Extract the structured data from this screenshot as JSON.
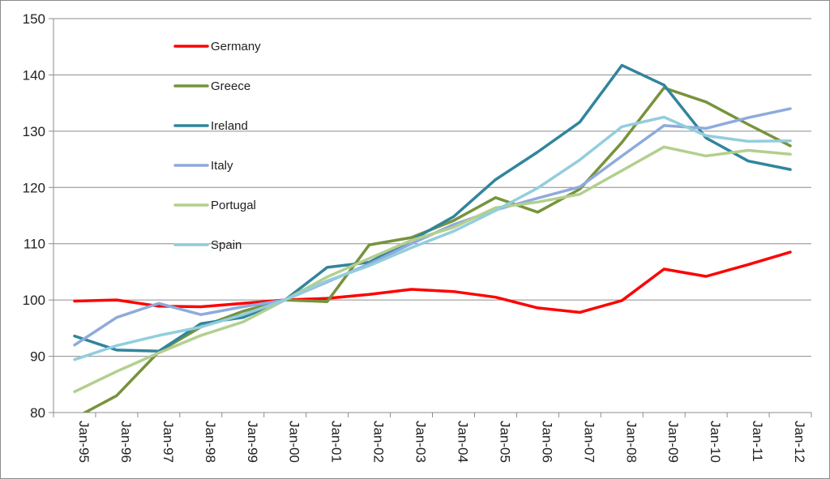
{
  "chart_data": {
    "type": "line",
    "title": "",
    "xlabel": "",
    "ylabel": "",
    "categories": [
      "Jan-95",
      "Jan-96",
      "Jan-97",
      "Jan-98",
      "Jan-99",
      "Jan-00",
      "Jan-01",
      "Jan-02",
      "Jan-03",
      "Jan-04",
      "Jan-05",
      "Jan-06",
      "Jan-07",
      "Jan-08",
      "Jan-09",
      "Jan-10",
      "Jan-11",
      "Jan-12"
    ],
    "ylim": [
      80,
      150
    ],
    "yticks": [
      "80",
      "90",
      "100",
      "110",
      "120",
      "130",
      "140",
      "150"
    ],
    "grid": true,
    "legend_position": "top-left",
    "series": [
      {
        "name": "Germany",
        "color": "#ff0000",
        "values": [
          99.8,
          100.0,
          98.9,
          98.8,
          99.4,
          100.0,
          100.3,
          101.0,
          101.9,
          101.5,
          100.5,
          98.6,
          97.8,
          99.9,
          105.5,
          104.2,
          106.3,
          108.5
        ]
      },
      {
        "name": "Greece",
        "color": "#77933c",
        "values": [
          79.0,
          83.0,
          90.8,
          95.2,
          98.0,
          100.0,
          99.7,
          109.8,
          111.1,
          114.1,
          118.2,
          115.6,
          119.7,
          128.0,
          137.7,
          135.2,
          131.2,
          127.4
        ]
      },
      {
        "name": "Ireland",
        "color": "#31859c",
        "values": [
          93.6,
          91.1,
          90.9,
          95.8,
          96.9,
          100.0,
          105.8,
          106.7,
          110.6,
          114.8,
          121.4,
          126.3,
          131.6,
          141.7,
          138.2,
          128.8,
          124.7,
          123.2
        ]
      },
      {
        "name": "Italy",
        "color": "#8faadc",
        "values": [
          92.0,
          96.9,
          99.4,
          97.4,
          98.8,
          100.0,
          103.2,
          106.4,
          110.0,
          113.4,
          116.0,
          118.1,
          120.1,
          125.6,
          131.0,
          130.5,
          132.4,
          134.0
        ]
      },
      {
        "name": "Portugal",
        "color": "#b3cf8e",
        "values": [
          83.7,
          87.3,
          90.6,
          93.7,
          96.1,
          100.0,
          104.1,
          107.4,
          110.6,
          112.9,
          116.4,
          117.4,
          118.8,
          123.0,
          127.2,
          125.6,
          126.6,
          125.9
        ]
      },
      {
        "name": "Spain",
        "color": "#93cddd",
        "values": [
          89.4,
          91.9,
          93.7,
          95.2,
          97.4,
          100.0,
          103.4,
          106.1,
          109.3,
          112.2,
          115.9,
          119.9,
          124.9,
          130.8,
          132.5,
          129.2,
          128.2,
          128.3
        ]
      }
    ]
  }
}
